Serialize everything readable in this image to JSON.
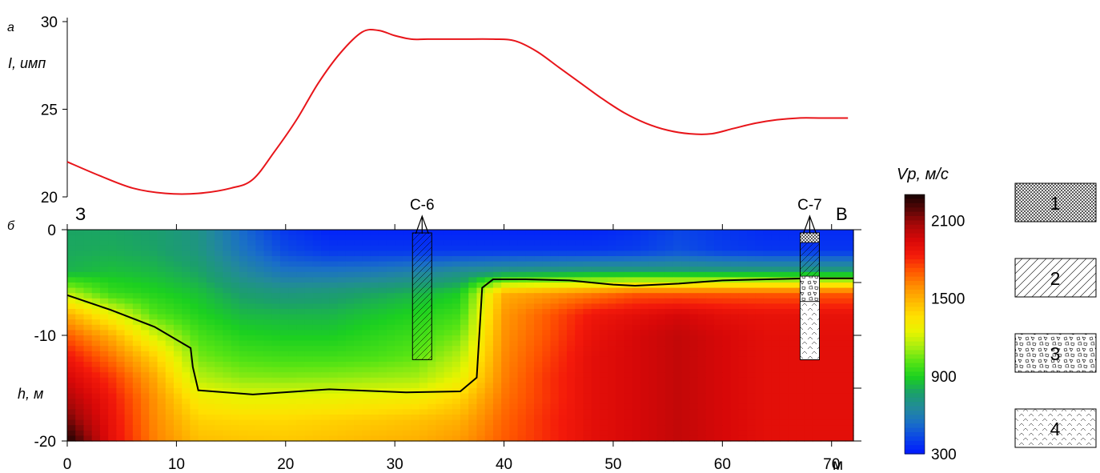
{
  "colors": {
    "curve": "#e8151a",
    "contour": "#000000",
    "scale": [
      "#0018ff",
      "#0a44e8",
      "#1a6fc8",
      "#228a9a",
      "#1ba06a",
      "#1bd020",
      "#55e414",
      "#a8ee10",
      "#e8f400",
      "#ffe000",
      "#ffb800",
      "#ff8c00",
      "#ff5500",
      "#f41a0a",
      "#d80808",
      "#a80808",
      "#5a0606",
      "#160202"
    ]
  },
  "panel_a": {
    "label": "а",
    "ylabel": "I, имп",
    "yticks": [
      "20",
      "25",
      "30"
    ]
  },
  "panel_b": {
    "label": "б",
    "ylabel": "h, м",
    "yticks": [
      "0",
      "-10",
      "-20"
    ],
    "xticks": [
      "0",
      "10",
      "20",
      "30",
      "40",
      "50",
      "60",
      "70"
    ],
    "x_unit": "м",
    "west": "З",
    "east": "В",
    "boreholes": [
      "С-6",
      "С-7"
    ]
  },
  "colorbar": {
    "title": "Vp, м/с",
    "ticks": [
      "300",
      "900",
      "1500",
      "2100"
    ]
  },
  "legend": [
    "1",
    "2",
    "3",
    "4"
  ],
  "chart_data": [
    {
      "type": "line",
      "panel": "а",
      "ylabel": "I, имп",
      "ylim": [
        20,
        30
      ],
      "xlim": [
        0,
        72
      ],
      "series": [
        {
          "x": [
            0,
            3,
            6,
            9,
            12,
            15,
            17,
            19,
            21,
            23,
            25,
            27,
            28.5,
            30,
            31.5,
            33,
            36,
            39,
            41,
            43,
            45,
            47,
            49,
            51,
            53,
            55,
            57,
            59,
            61,
            63,
            65,
            67,
            69,
            71.5
          ],
          "y": [
            22.0,
            21.2,
            20.5,
            20.2,
            20.2,
            20.5,
            21.0,
            22.6,
            24.4,
            26.5,
            28.2,
            29.4,
            29.5,
            29.2,
            29.0,
            29.0,
            29.0,
            29.0,
            28.9,
            28.3,
            27.4,
            26.5,
            25.6,
            24.8,
            24.2,
            23.8,
            23.6,
            23.6,
            23.9,
            24.2,
            24.4,
            24.5,
            24.5,
            24.5
          ]
        }
      ]
    },
    {
      "type": "heatmap",
      "panel": "б",
      "xlabel": "м",
      "ylabel": "h, м",
      "xlim": [
        0,
        72
      ],
      "ylim": [
        -20,
        0
      ],
      "colorbar": {
        "title": "Vp, м/с",
        "range": [
          300,
          2300
        ],
        "ticks": [
          300,
          900,
          1500,
          2100
        ]
      },
      "grid_x": [
        0,
        4,
        8,
        12,
        16,
        20,
        24,
        28,
        32,
        36,
        40,
        44,
        48,
        52,
        56,
        60,
        64,
        68,
        72
      ],
      "grid_y": [
        0,
        -2,
        -4,
        -6,
        -8,
        -10,
        -12,
        -14,
        -16,
        -18,
        -20
      ],
      "values": [
        [
          780,
          780,
          760,
          700,
          520,
          380,
          330,
          330,
          330,
          330,
          330,
          330,
          330,
          360,
          420,
          380,
          350,
          350,
          350
        ],
        [
          790,
          800,
          780,
          720,
          560,
          430,
          380,
          380,
          380,
          380,
          380,
          380,
          380,
          400,
          450,
          400,
          380,
          380,
          380
        ],
        [
          820,
          850,
          830,
          780,
          650,
          560,
          560,
          580,
          620,
          680,
          720,
          740,
          760,
          760,
          760,
          760,
          760,
          760,
          760
        ],
        [
          1150,
          950,
          900,
          850,
          760,
          720,
          740,
          780,
          820,
          880,
          1500,
          1560,
          1620,
          1700,
          1700,
          1700,
          1700,
          1700,
          1700
        ],
        [
          1500,
          1250,
          1000,
          900,
          830,
          820,
          820,
          860,
          900,
          960,
          1560,
          1700,
          1850,
          1900,
          1950,
          1900,
          1880,
          1880,
          1880
        ],
        [
          1700,
          1500,
          1200,
          980,
          900,
          880,
          880,
          920,
          960,
          1050,
          1580,
          1720,
          1880,
          1950,
          2000,
          1950,
          1900,
          1900,
          1900
        ],
        [
          1850,
          1650,
          1400,
          1050,
          980,
          960,
          960,
          980,
          1020,
          1150,
          1600,
          1750,
          1900,
          1950,
          2000,
          1950,
          1900,
          1900,
          1900
        ],
        [
          1950,
          1780,
          1520,
          1150,
          1080,
          1070,
          1080,
          1100,
          1120,
          1250,
          1620,
          1780,
          1900,
          1950,
          2000,
          1950,
          1900,
          1900,
          1900
        ],
        [
          2050,
          1850,
          1580,
          1300,
          1250,
          1250,
          1260,
          1280,
          1300,
          1400,
          1650,
          1780,
          1900,
          1950,
          2000,
          1950,
          1900,
          1900,
          1900
        ],
        [
          2150,
          1880,
          1600,
          1400,
          1380,
          1380,
          1400,
          1420,
          1450,
          1500,
          1680,
          1800,
          1900,
          1950,
          2000,
          1950,
          1900,
          1900,
          1900
        ],
        [
          2300,
          1900,
          1620,
          1460,
          1440,
          1430,
          1450,
          1480,
          1500,
          1560,
          1700,
          1800,
          1900,
          1950,
          2000,
          1950,
          1900,
          1900,
          1900
        ]
      ],
      "contour": {
        "x": [
          0,
          4,
          8,
          11.3,
          11.5,
          12,
          17,
          24,
          31,
          36,
          37.5,
          38,
          39,
          42,
          46,
          50,
          52,
          56,
          60,
          64,
          68,
          72
        ],
        "y": [
          -6.2,
          -7.6,
          -9.2,
          -11.2,
          -13,
          -15.2,
          -15.6,
          -15.1,
          -15.4,
          -15.3,
          -14,
          -5.5,
          -4.7,
          -4.7,
          -4.8,
          -5.2,
          -5.3,
          -5.1,
          -4.8,
          -4.7,
          -4.6,
          -4.6
        ]
      },
      "boreholes": [
        {
          "name": "С-6",
          "x": 32.5,
          "bottom": -12.3
        },
        {
          "name": "С-7",
          "x": 68,
          "bottom": -12.3
        }
      ]
    }
  ]
}
